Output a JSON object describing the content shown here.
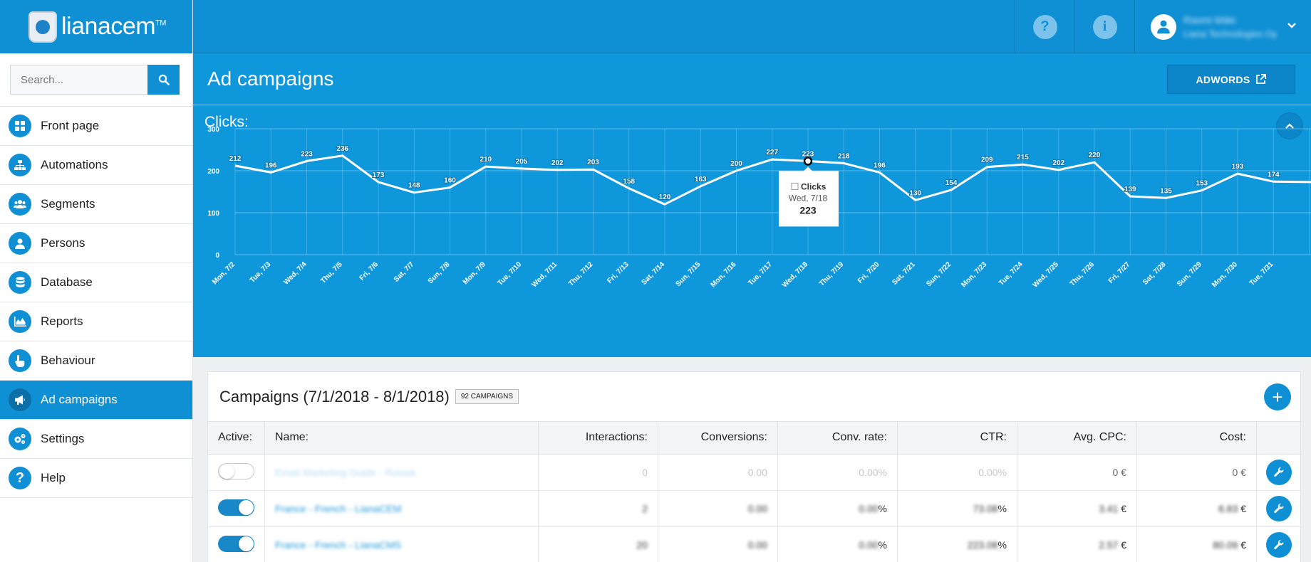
{
  "app": {
    "logo_text": "lianacem",
    "logo_tm": "TM"
  },
  "topbar": {
    "help_icon_label": "?",
    "info_icon_label": "i",
    "user_name": "Rasmi Mäki",
    "user_org": "Liana Technologies Oy"
  },
  "sidebar": {
    "search_placeholder": "Search...",
    "items": [
      {
        "label": "Front page",
        "icon": "dashboard-icon",
        "active": false
      },
      {
        "label": "Automations",
        "icon": "sitemap-icon",
        "active": false
      },
      {
        "label": "Segments",
        "icon": "users-icon",
        "active": false
      },
      {
        "label": "Persons",
        "icon": "user-icon",
        "active": false
      },
      {
        "label": "Database",
        "icon": "database-icon",
        "active": false
      },
      {
        "label": "Reports",
        "icon": "area-chart-icon",
        "active": false
      },
      {
        "label": "Behaviour",
        "icon": "hand-pointer-icon",
        "active": false
      },
      {
        "label": "Ad campaigns",
        "icon": "megaphone-icon",
        "active": true
      },
      {
        "label": "Settings",
        "icon": "gears-icon",
        "active": false
      },
      {
        "label": "Help",
        "icon": "question-icon",
        "active": false
      }
    ]
  },
  "header": {
    "title": "Ad campaigns",
    "adwords_label": "ADWORDS"
  },
  "chart_panel": {
    "title": "Clicks:"
  },
  "chart_data": {
    "type": "line",
    "title": "Clicks:",
    "xlabel": "",
    "ylabel": "",
    "ylim": [
      0,
      300
    ],
    "yticks": [
      0,
      100,
      200,
      300
    ],
    "grid": true,
    "categories": [
      "Mon, 7/2",
      "Tue, 7/3",
      "Wed, 7/4",
      "Thu, 7/5",
      "Fri, 7/6",
      "Sat, 7/7",
      "Sun, 7/8",
      "Mon, 7/9",
      "Tue, 7/10",
      "Wed, 7/11",
      "Thu, 7/12",
      "Fri, 7/13",
      "Sat, 7/14",
      "Sun, 7/15",
      "Mon, 7/16",
      "Tue, 7/17",
      "Wed, 7/18",
      "Thu, 7/19",
      "Fri, 7/20",
      "Sat, 7/21",
      "Sun, 7/22",
      "Mon, 7/23",
      "Tue, 7/24",
      "Wed, 7/25",
      "Thu, 7/26",
      "Fri, 7/27",
      "Sat, 7/28",
      "Sun, 7/29",
      "Mon, 7/30",
      "Tue, 7/31"
    ],
    "series": [
      {
        "name": "Clicks",
        "values": [
          212,
          196,
          223,
          236,
          173,
          148,
          160,
          210,
          205,
          202,
          203,
          158,
          120,
          163,
          200,
          227,
          223,
          218,
          196,
          130,
          154,
          209,
          215,
          202,
          220,
          139,
          135,
          153,
          193,
          174
        ]
      }
    ],
    "trailing_value": 173,
    "tooltip": {
      "series": "Clicks",
      "date": "Wed, 7/18",
      "value": "223",
      "index": 16
    }
  },
  "campaigns": {
    "title": "Campaigns (7/1/2018 - 8/1/2018)",
    "badge": "92 CAMPAIGNS",
    "columns": [
      "Active:",
      "Name:",
      "Interactions:",
      "Conversions:",
      "Conv. rate:",
      "CTR:",
      "Avg. CPC:",
      "Cost:",
      ""
    ],
    "rows": [
      {
        "active": false,
        "name": "Email Marketing Guide - Russia",
        "interactions": "0",
        "conversions": "0.00",
        "conv_rate": "0.00%",
        "ctr": "0.00%",
        "avg_cpc": "0 €",
        "cost": "0 €"
      },
      {
        "active": true,
        "name": "France - French - LianaCEM",
        "interactions": "2",
        "conversions": "0.00",
        "conv_rate": "0.00",
        "ctr": "73.08",
        "avg_cpc": "3.41",
        "cost": "6.83"
      },
      {
        "active": true,
        "name": "France - French - LianaCMS",
        "interactions": "20",
        "conversions": "0.00",
        "conv_rate": "0.00",
        "ctr": "223.08",
        "avg_cpc": "2.57",
        "cost": "80.09"
      }
    ],
    "percent_suffix": "%",
    "euro_suffix": "€"
  },
  "colors": {
    "brand": "#0f8fd4",
    "chart_bg": "#0f97dc",
    "link": "#1f9ad9"
  }
}
